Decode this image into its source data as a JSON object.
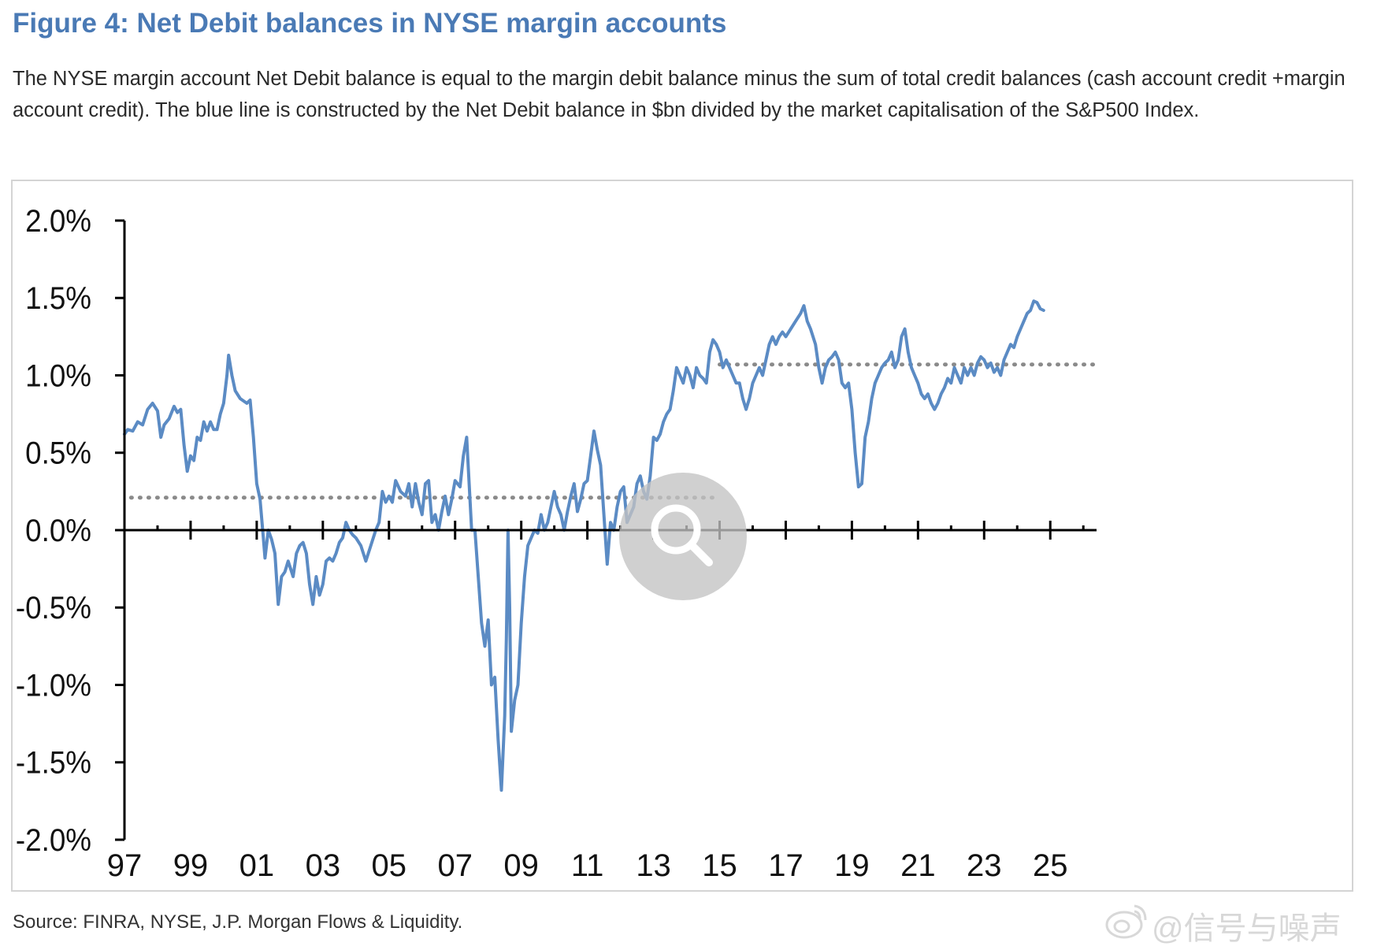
{
  "figure": {
    "title": "Figure 4: Net Debit balances in NYSE margin accounts",
    "description": "The NYSE margin account Net Debit balance is equal to the margin debit balance minus the sum of total credit balances (cash account credit +margin account credit). The blue line is constructed by the Net Debit balance in $bn divided by the market capitalisation of the S&P500 Index.",
    "source": "Source: FINRA, NYSE, J.P. Morgan Flows & Liquidity."
  },
  "watermark": {
    "text": "@信号与噪声",
    "icon": "weibo-logo-icon"
  },
  "overlay": {
    "icon": "magnifier-zoom-icon"
  },
  "colors": {
    "title": "#4a7ab5",
    "series": "#5b8bc4",
    "reference": "#8a8a8a",
    "axis": "#000000"
  },
  "chart_data": {
    "type": "line",
    "title": "Figure 4: Net Debit balances in NYSE margin accounts",
    "xlabel": "",
    "ylabel": "",
    "ylim": [
      -2.0,
      2.0
    ],
    "xlim": [
      1997,
      2026.4
    ],
    "y_ticks": [
      "2.0%",
      "1.5%",
      "1.0%",
      "0.5%",
      "0.0%",
      "-0.5%",
      "-1.0%",
      "-1.5%",
      "-2.0%"
    ],
    "y_tick_values": [
      2.0,
      1.5,
      1.0,
      0.5,
      0.0,
      -0.5,
      -1.0,
      -1.5,
      -2.0
    ],
    "x_ticks": [
      "97",
      "99",
      "01",
      "03",
      "05",
      "07",
      "09",
      "11",
      "13",
      "15",
      "17",
      "19",
      "21",
      "23",
      "25"
    ],
    "x_tick_values": [
      1997,
      1999,
      2001,
      2003,
      2005,
      2007,
      2009,
      2011,
      2013,
      2015,
      2017,
      2019,
      2021,
      2023,
      2025
    ],
    "grid": false,
    "legend": "none",
    "reference_lines": [
      {
        "style": "dotted",
        "x_start": 1997.2,
        "x_end": 2015.0,
        "y": 0.21
      },
      {
        "style": "dotted",
        "x_start": 2015.0,
        "x_end": 2026.3,
        "y": 1.07
      }
    ],
    "series": [
      {
        "values": [
          [
            1997.0,
            0.62
          ],
          [
            1997.1,
            0.65
          ],
          [
            1997.25,
            0.64
          ],
          [
            1997.4,
            0.7
          ],
          [
            1997.55,
            0.68
          ],
          [
            1997.7,
            0.78
          ],
          [
            1997.85,
            0.82
          ],
          [
            1998.0,
            0.77
          ],
          [
            1998.1,
            0.6
          ],
          [
            1998.2,
            0.68
          ],
          [
            1998.35,
            0.72
          ],
          [
            1998.5,
            0.8
          ],
          [
            1998.6,
            0.76
          ],
          [
            1998.7,
            0.78
          ],
          [
            1998.8,
            0.55
          ],
          [
            1998.9,
            0.38
          ],
          [
            1999.0,
            0.48
          ],
          [
            1999.1,
            0.45
          ],
          [
            1999.2,
            0.6
          ],
          [
            1999.3,
            0.58
          ],
          [
            1999.4,
            0.7
          ],
          [
            1999.5,
            0.64
          ],
          [
            1999.6,
            0.7
          ],
          [
            1999.7,
            0.65
          ],
          [
            1999.8,
            0.65
          ],
          [
            1999.9,
            0.75
          ],
          [
            2000.0,
            0.82
          ],
          [
            2000.1,
            1.0
          ],
          [
            2000.15,
            1.13
          ],
          [
            2000.25,
            1.0
          ],
          [
            2000.35,
            0.9
          ],
          [
            2000.5,
            0.85
          ],
          [
            2000.7,
            0.82
          ],
          [
            2000.8,
            0.84
          ],
          [
            2000.9,
            0.6
          ],
          [
            2001.0,
            0.3
          ],
          [
            2001.1,
            0.2
          ],
          [
            2001.2,
            -0.05
          ],
          [
            2001.25,
            -0.18
          ],
          [
            2001.35,
            0.0
          ],
          [
            2001.45,
            -0.06
          ],
          [
            2001.55,
            -0.15
          ],
          [
            2001.65,
            -0.48
          ],
          [
            2001.75,
            -0.3
          ],
          [
            2001.85,
            -0.27
          ],
          [
            2001.95,
            -0.2
          ],
          [
            2002.1,
            -0.3
          ],
          [
            2002.2,
            -0.15
          ],
          [
            2002.3,
            -0.1
          ],
          [
            2002.4,
            -0.08
          ],
          [
            2002.5,
            -0.15
          ],
          [
            2002.6,
            -0.35
          ],
          [
            2002.7,
            -0.48
          ],
          [
            2002.8,
            -0.3
          ],
          [
            2002.9,
            -0.42
          ],
          [
            2003.0,
            -0.35
          ],
          [
            2003.1,
            -0.2
          ],
          [
            2003.2,
            -0.18
          ],
          [
            2003.3,
            -0.2
          ],
          [
            2003.4,
            -0.15
          ],
          [
            2003.5,
            -0.08
          ],
          [
            2003.6,
            -0.05
          ],
          [
            2003.7,
            0.05
          ],
          [
            2003.8,
            0.0
          ],
          [
            2003.9,
            -0.03
          ],
          [
            2004.0,
            -0.05
          ],
          [
            2004.15,
            -0.1
          ],
          [
            2004.3,
            -0.2
          ],
          [
            2004.45,
            -0.1
          ],
          [
            2004.6,
            0.0
          ],
          [
            2004.7,
            0.05
          ],
          [
            2004.8,
            0.25
          ],
          [
            2004.9,
            0.18
          ],
          [
            2005.0,
            0.22
          ],
          [
            2005.1,
            0.18
          ],
          [
            2005.2,
            0.32
          ],
          [
            2005.35,
            0.25
          ],
          [
            2005.5,
            0.22
          ],
          [
            2005.6,
            0.3
          ],
          [
            2005.7,
            0.15
          ],
          [
            2005.8,
            0.3
          ],
          [
            2005.9,
            0.18
          ],
          [
            2006.0,
            0.1
          ],
          [
            2006.1,
            0.3
          ],
          [
            2006.2,
            0.32
          ],
          [
            2006.3,
            0.05
          ],
          [
            2006.4,
            0.1
          ],
          [
            2006.5,
            0.0
          ],
          [
            2006.6,
            0.12
          ],
          [
            2006.7,
            0.22
          ],
          [
            2006.8,
            0.1
          ],
          [
            2006.9,
            0.2
          ],
          [
            2007.0,
            0.32
          ],
          [
            2007.15,
            0.28
          ],
          [
            2007.25,
            0.48
          ],
          [
            2007.35,
            0.6
          ],
          [
            2007.45,
            0.2
          ],
          [
            2007.5,
            0.0
          ],
          [
            2007.6,
            0.0
          ],
          [
            2007.7,
            -0.3
          ],
          [
            2007.8,
            -0.6
          ],
          [
            2007.9,
            -0.75
          ],
          [
            2008.0,
            -0.58
          ],
          [
            2008.1,
            -1.0
          ],
          [
            2008.2,
            -0.95
          ],
          [
            2008.3,
            -1.35
          ],
          [
            2008.4,
            -1.68
          ],
          [
            2008.5,
            -1.2
          ],
          [
            2008.55,
            -0.7
          ],
          [
            2008.6,
            0.0
          ],
          [
            2008.65,
            -0.5
          ],
          [
            2008.7,
            -1.3
          ],
          [
            2008.8,
            -1.1
          ],
          [
            2008.9,
            -1.0
          ],
          [
            2009.0,
            -0.6
          ],
          [
            2009.1,
            -0.3
          ],
          [
            2009.2,
            -0.1
          ],
          [
            2009.3,
            -0.05
          ],
          [
            2009.4,
            0.0
          ],
          [
            2009.5,
            -0.02
          ],
          [
            2009.6,
            0.1
          ],
          [
            2009.7,
            0.0
          ],
          [
            2009.8,
            0.05
          ],
          [
            2009.9,
            0.15
          ],
          [
            2010.0,
            0.25
          ],
          [
            2010.1,
            0.15
          ],
          [
            2010.2,
            0.1
          ],
          [
            2010.3,
            0.0
          ],
          [
            2010.4,
            0.12
          ],
          [
            2010.5,
            0.22
          ],
          [
            2010.6,
            0.3
          ],
          [
            2010.7,
            0.12
          ],
          [
            2010.8,
            0.2
          ],
          [
            2010.9,
            0.3
          ],
          [
            2011.0,
            0.32
          ],
          [
            2011.1,
            0.48
          ],
          [
            2011.2,
            0.64
          ],
          [
            2011.3,
            0.52
          ],
          [
            2011.4,
            0.42
          ],
          [
            2011.5,
            0.1
          ],
          [
            2011.6,
            -0.22
          ],
          [
            2011.7,
            0.05
          ],
          [
            2011.8,
            0.0
          ],
          [
            2011.9,
            0.15
          ],
          [
            2012.0,
            0.25
          ],
          [
            2012.1,
            0.28
          ],
          [
            2012.2,
            0.05
          ],
          [
            2012.3,
            0.1
          ],
          [
            2012.4,
            0.15
          ],
          [
            2012.5,
            0.3
          ],
          [
            2012.6,
            0.35
          ],
          [
            2012.7,
            0.25
          ],
          [
            2012.8,
            0.2
          ],
          [
            2012.9,
            0.35
          ],
          [
            2013.0,
            0.6
          ],
          [
            2013.1,
            0.58
          ],
          [
            2013.2,
            0.62
          ],
          [
            2013.3,
            0.7
          ],
          [
            2013.4,
            0.75
          ],
          [
            2013.5,
            0.78
          ],
          [
            2013.6,
            0.9
          ],
          [
            2013.7,
            1.05
          ],
          [
            2013.8,
            1.0
          ],
          [
            2013.9,
            0.95
          ],
          [
            2014.0,
            1.05
          ],
          [
            2014.1,
            1.0
          ],
          [
            2014.2,
            0.92
          ],
          [
            2014.3,
            1.05
          ],
          [
            2014.4,
            1.0
          ],
          [
            2014.5,
            0.98
          ],
          [
            2014.6,
            0.95
          ],
          [
            2014.7,
            1.15
          ],
          [
            2014.8,
            1.23
          ],
          [
            2014.9,
            1.2
          ],
          [
            2015.0,
            1.15
          ],
          [
            2015.1,
            1.05
          ],
          [
            2015.2,
            1.1
          ],
          [
            2015.3,
            1.05
          ],
          [
            2015.4,
            1.0
          ],
          [
            2015.5,
            0.95
          ],
          [
            2015.6,
            0.95
          ],
          [
            2015.7,
            0.85
          ],
          [
            2015.8,
            0.78
          ],
          [
            2015.9,
            0.85
          ],
          [
            2016.0,
            0.95
          ],
          [
            2016.1,
            1.0
          ],
          [
            2016.2,
            1.05
          ],
          [
            2016.3,
            1.0
          ],
          [
            2016.4,
            1.1
          ],
          [
            2016.5,
            1.2
          ],
          [
            2016.6,
            1.25
          ],
          [
            2016.7,
            1.2
          ],
          [
            2016.8,
            1.25
          ],
          [
            2016.9,
            1.28
          ],
          [
            2017.0,
            1.25
          ],
          [
            2017.15,
            1.3
          ],
          [
            2017.3,
            1.35
          ],
          [
            2017.45,
            1.4
          ],
          [
            2017.55,
            1.45
          ],
          [
            2017.65,
            1.35
          ],
          [
            2017.75,
            1.3
          ],
          [
            2017.9,
            1.2
          ],
          [
            2018.0,
            1.05
          ],
          [
            2018.1,
            0.95
          ],
          [
            2018.2,
            1.05
          ],
          [
            2018.3,
            1.1
          ],
          [
            2018.4,
            1.12
          ],
          [
            2018.5,
            1.15
          ],
          [
            2018.6,
            1.1
          ],
          [
            2018.7,
            0.95
          ],
          [
            2018.8,
            0.92
          ],
          [
            2018.9,
            0.95
          ],
          [
            2019.0,
            0.78
          ],
          [
            2019.1,
            0.5
          ],
          [
            2019.2,
            0.28
          ],
          [
            2019.3,
            0.3
          ],
          [
            2019.4,
            0.6
          ],
          [
            2019.5,
            0.7
          ],
          [
            2019.6,
            0.85
          ],
          [
            2019.7,
            0.95
          ],
          [
            2019.8,
            1.0
          ],
          [
            2019.9,
            1.05
          ],
          [
            2020.0,
            1.08
          ],
          [
            2020.1,
            1.1
          ],
          [
            2020.2,
            1.15
          ],
          [
            2020.3,
            1.05
          ],
          [
            2020.4,
            1.1
          ],
          [
            2020.5,
            1.25
          ],
          [
            2020.6,
            1.3
          ],
          [
            2020.7,
            1.15
          ],
          [
            2020.8,
            1.05
          ],
          [
            2020.9,
            1.0
          ],
          [
            2021.0,
            0.95
          ],
          [
            2021.1,
            0.88
          ],
          [
            2021.2,
            0.85
          ],
          [
            2021.3,
            0.88
          ],
          [
            2021.4,
            0.82
          ],
          [
            2021.5,
            0.78
          ],
          [
            2021.6,
            0.82
          ],
          [
            2021.7,
            0.88
          ],
          [
            2021.8,
            0.92
          ],
          [
            2021.9,
            0.98
          ],
          [
            2022.0,
            0.95
          ],
          [
            2022.1,
            1.05
          ],
          [
            2022.2,
            1.0
          ],
          [
            2022.3,
            0.95
          ],
          [
            2022.4,
            1.05
          ],
          [
            2022.5,
            1.0
          ],
          [
            2022.6,
            1.05
          ],
          [
            2022.7,
            1.0
          ],
          [
            2022.8,
            1.08
          ],
          [
            2022.9,
            1.12
          ],
          [
            2023.0,
            1.1
          ],
          [
            2023.1,
            1.05
          ],
          [
            2023.2,
            1.08
          ],
          [
            2023.3,
            1.02
          ],
          [
            2023.4,
            1.05
          ],
          [
            2023.5,
            1.0
          ],
          [
            2023.6,
            1.1
          ],
          [
            2023.7,
            1.15
          ],
          [
            2023.8,
            1.2
          ],
          [
            2023.9,
            1.18
          ],
          [
            2024.0,
            1.25
          ],
          [
            2024.1,
            1.3
          ],
          [
            2024.2,
            1.35
          ],
          [
            2024.3,
            1.4
          ],
          [
            2024.4,
            1.42
          ],
          [
            2024.5,
            1.48
          ],
          [
            2024.6,
            1.47
          ],
          [
            2024.7,
            1.43
          ],
          [
            2024.8,
            1.42
          ]
        ]
      }
    ]
  }
}
